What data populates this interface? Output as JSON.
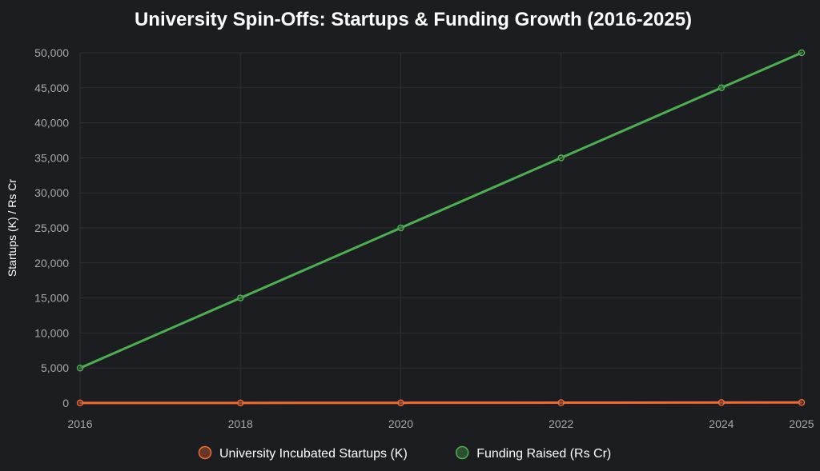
{
  "chart_data": {
    "type": "line",
    "title": "University Spin-Offs: Startups & Funding Growth (2016-2025)",
    "xlabel": "",
    "ylabel": "Startups (K) / Rs Cr",
    "x": [
      2016,
      2018,
      2020,
      2022,
      2024,
      2025
    ],
    "x_tick_labels": [
      "2016",
      "2018",
      "2020",
      "2022",
      "2024",
      "2025"
    ],
    "xlim": [
      2016,
      2025
    ],
    "ylim": [
      0,
      50000
    ],
    "y_ticks": [
      0,
      5000,
      10000,
      15000,
      20000,
      25000,
      30000,
      35000,
      40000,
      45000,
      50000
    ],
    "y_tick_labels": [
      "0",
      "5,000",
      "10,000",
      "15,000",
      "20,000",
      "25,000",
      "30,000",
      "35,000",
      "40,000",
      "45,000",
      "50,000"
    ],
    "grid": true,
    "legend_position": "bottom-center",
    "series": [
      {
        "name": "University Incubated Startups (K)",
        "color": "#f26a2e",
        "values": [
          10,
          20,
          35,
          50,
          70,
          80
        ]
      },
      {
        "name": "Funding Raised (Rs Cr)",
        "color": "#4caf50",
        "values": [
          5000,
          15000,
          25000,
          35000,
          45000,
          50000
        ]
      }
    ]
  }
}
